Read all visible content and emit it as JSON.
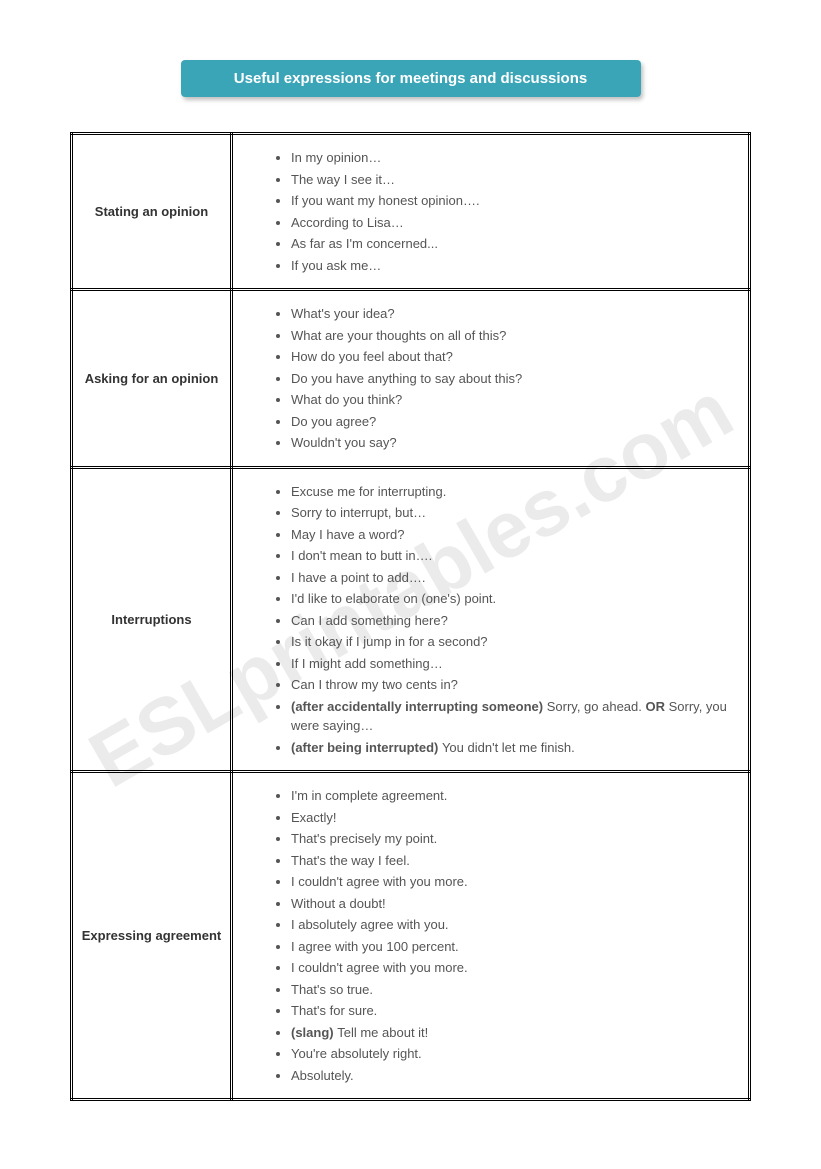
{
  "title": "Useful expressions for meetings and discussions",
  "watermark": "ESLprintables.com",
  "colors": {
    "title_bg": "#3ba5b8",
    "title_text": "#ffffff",
    "border": "#000000",
    "text": "#555555",
    "category_text": "#333333",
    "background": "#ffffff",
    "watermark": "rgba(0,0,0,0.08)"
  },
  "typography": {
    "title_fontsize": 15,
    "body_fontsize": 13,
    "font_family": "Arial"
  },
  "sections": [
    {
      "category": "Stating an opinion",
      "items": [
        {
          "text": "In my opinion…"
        },
        {
          "text": "The way I see it…"
        },
        {
          "text": "If you want my honest opinion…."
        },
        {
          "text": "According to Lisa…"
        },
        {
          "text": "As far as I'm concerned..."
        },
        {
          "text": "If you ask me…"
        }
      ]
    },
    {
      "category": "Asking for an opinion",
      "items": [
        {
          "text": "What's your idea?"
        },
        {
          "text": "What are your thoughts on all of this?"
        },
        {
          "text": "How do you feel about that?"
        },
        {
          "text": "Do you have anything to say about this?"
        },
        {
          "text": "What do you think?"
        },
        {
          "text": "Do you agree?"
        },
        {
          "text": "Wouldn't you say?"
        }
      ]
    },
    {
      "category": "Interruptions",
      "items": [
        {
          "text": "Excuse me for interrupting."
        },
        {
          "text": " Sorry to interrupt, but…"
        },
        {
          "text": "May I have a word?"
        },
        {
          "text": "I don't mean to butt in…."
        },
        {
          "text": "I have a point to add…."
        },
        {
          "text": "I'd like to elaborate on (one's) point."
        },
        {
          "text": "Can I add something here?"
        },
        {
          "text": "Is it okay if I jump in for a second?"
        },
        {
          "text": "If I might add something…"
        },
        {
          "text": "Can I throw my two cents in?"
        },
        {
          "bold": " (after accidentally interrupting someone) ",
          "text": "Sorry, go ahead. ",
          "bold2": "OR",
          "text2": " Sorry, you were saying…"
        },
        {
          "bold": "(after being interrupted) ",
          "text": "You didn't let me finish."
        }
      ]
    },
    {
      "category": "Expressing agreement",
      "items": [
        {
          "text": "I'm in complete agreement."
        },
        {
          "text": "Exactly!"
        },
        {
          "text": "That's precisely my point."
        },
        {
          "text": "That's the way I feel."
        },
        {
          "text": "I couldn't agree with you more."
        },
        {
          "text": "Without a doubt!"
        },
        {
          "text": "I absolutely agree with you."
        },
        {
          "text": "I agree with you 100 percent."
        },
        {
          "text": "I couldn't agree with you more."
        },
        {
          "text": "That's so true."
        },
        {
          "text": "That's for sure."
        },
        {
          "bold": "(slang) ",
          "text": "Tell me about it!"
        },
        {
          "text": "You're absolutely right."
        },
        {
          "text": "Absolutely."
        }
      ]
    }
  ]
}
